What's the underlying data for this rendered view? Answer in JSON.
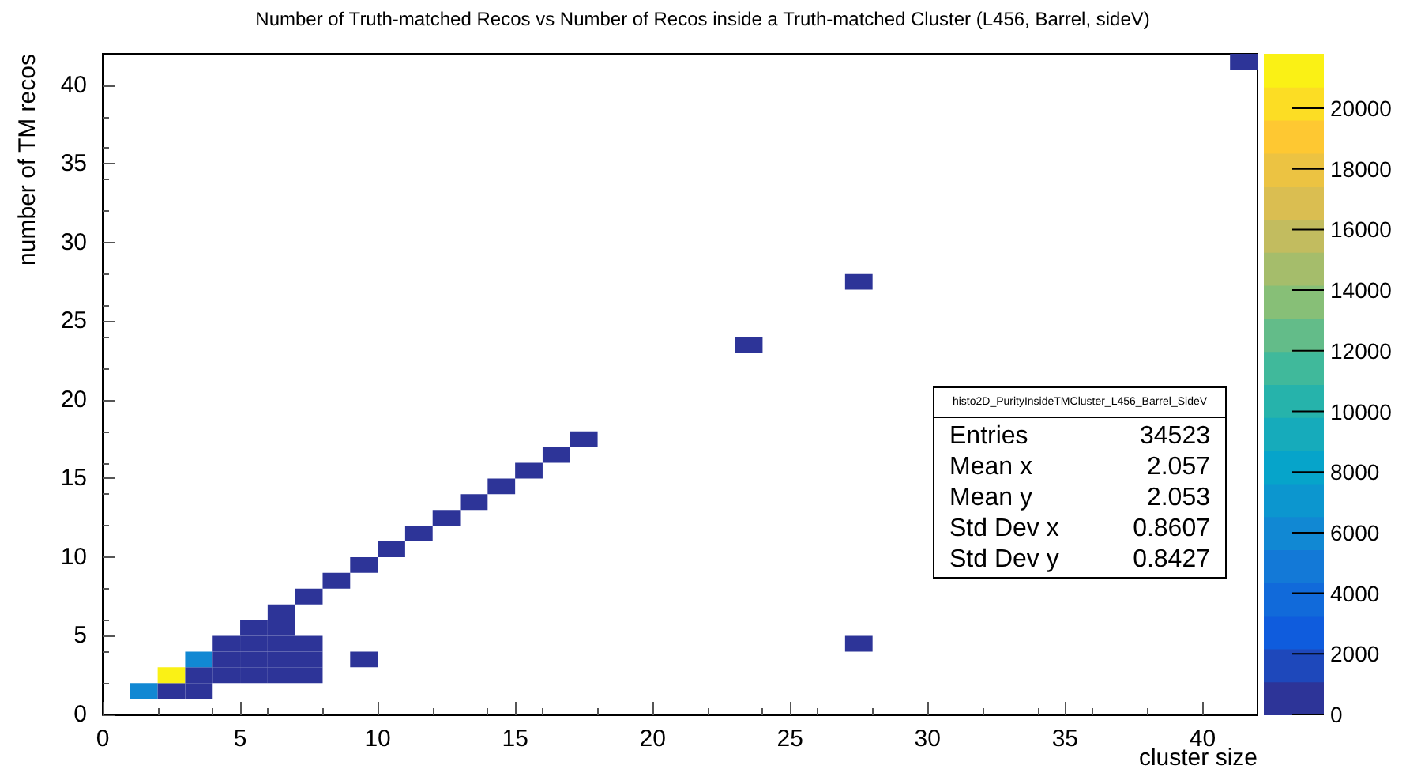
{
  "chart_data": {
    "type": "scatter",
    "title": "Number of Truth-matched Recos vs Number of Recos inside a Truth-matched Cluster (L456, Barrel, sideV)",
    "xlabel": "cluster size",
    "ylabel": "number of TM recos",
    "x": [
      1.5,
      2.5,
      3.5,
      2.5,
      3.5,
      4.5,
      5.5,
      6.5,
      7.5,
      3.5,
      4.5,
      5.5,
      6.5,
      7.5,
      9.5,
      4.5,
      5.5,
      6.5,
      7.5,
      27.5,
      5.5,
      6.5,
      6.5,
      7.5,
      8.5,
      9.5,
      10.5,
      11.5,
      12.5,
      13.5,
      14.5,
      15.5,
      16.5,
      17.5,
      23.5,
      27.5,
      41.5
    ],
    "values": [
      1.5,
      1.5,
      1.5,
      2.5,
      2.5,
      2.5,
      2.5,
      2.5,
      2.5,
      3.5,
      3.5,
      3.5,
      3.5,
      3.5,
      3.5,
      4.5,
      4.5,
      4.5,
      4.5,
      4.5,
      5.5,
      5.5,
      6.5,
      7.5,
      8.5,
      9.5,
      10.5,
      11.5,
      12.5,
      13.5,
      14.5,
      15.5,
      16.5,
      17.5,
      23.5,
      27.5,
      41.5
    ],
    "cvalues": [
      6500,
      300,
      150,
      21000,
      250,
      120,
      60,
      30,
      10,
      6500,
      200,
      90,
      40,
      15,
      2,
      80,
      60,
      30,
      10,
      1,
      30,
      20,
      15,
      10,
      6,
      4,
      3,
      2,
      2,
      1,
      1,
      1,
      1,
      1,
      1,
      1,
      1
    ],
    "xlim": [
      0,
      42
    ],
    "ylim": [
      0,
      42
    ],
    "xticks": [
      0,
      5,
      10,
      15,
      20,
      25,
      30,
      35,
      40
    ],
    "yticks": [
      0,
      5,
      10,
      15,
      20,
      25,
      30,
      35,
      40
    ],
    "clim": [
      0,
      21800
    ],
    "cticks": [
      0,
      2000,
      4000,
      6000,
      8000,
      10000,
      12000,
      14000,
      16000,
      18000,
      20000
    ],
    "grid": false,
    "annotations": [
      "histo2D_PurityInsideTMCluster_L456_Barrel_SideV",
      "Entries 34523",
      "Mean x 2.057",
      "Mean y 2.053",
      "Std Dev x 0.8607",
      "Std Dev y 0.8427"
    ]
  }
}
